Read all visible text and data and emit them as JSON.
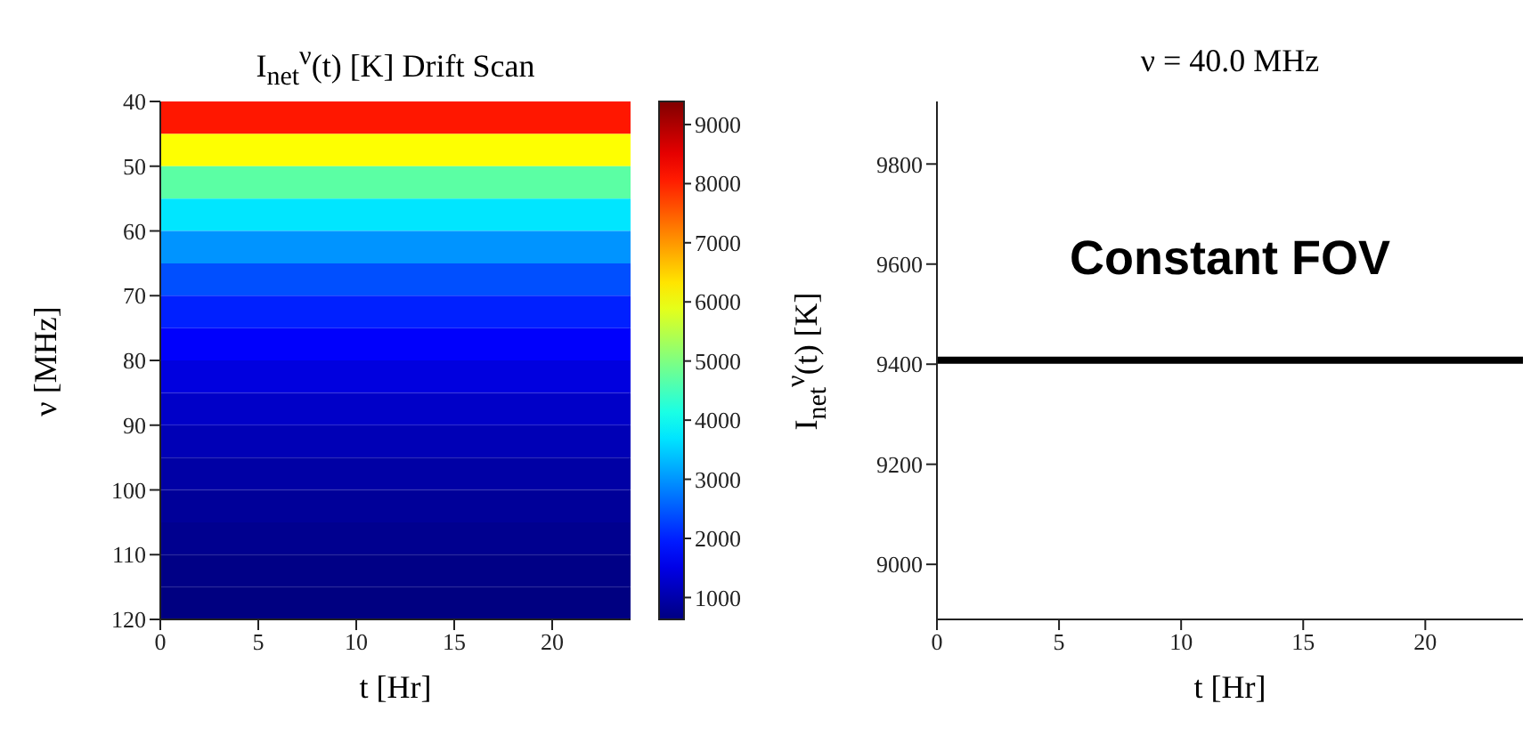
{
  "chart_data": [
    {
      "type": "heatmap",
      "title": "I$_{net}$$^{ν}$(t) [K] Drift Scan",
      "xlabel": "t [Hr]",
      "ylabel": "ν [MHz]",
      "xlim": [
        0,
        24
      ],
      "xticks": [
        0,
        5,
        10,
        15,
        20
      ],
      "ylim": [
        120,
        40
      ],
      "yticks": [
        40,
        50,
        60,
        70,
        80,
        90,
        100,
        110,
        120
      ],
      "clim": [
        630,
        9390
      ],
      "cticks": [
        1000,
        2000,
        3000,
        4000,
        5000,
        6000,
        7000,
        8000,
        9000
      ],
      "cells": [
        [
          8100
        ],
        [
          6100
        ],
        [
          4700
        ],
        [
          3700
        ],
        [
          3000
        ],
        [
          2400
        ],
        [
          2000
        ],
        [
          1700
        ],
        [
          1450
        ],
        [
          1250
        ],
        [
          1100
        ],
        [
          950
        ],
        [
          850
        ],
        [
          760
        ],
        [
          690
        ],
        [
          640
        ]
      ]
    },
    {
      "type": "line",
      "title": "ν = 40.0 MHz",
      "xlabel": "t [Hr]",
      "ylabel": "I$_{net}$$^{ν}$(t) [K]",
      "x": [
        0,
        24
      ],
      "xlim": [
        0,
        24
      ],
      "xticks": [
        0,
        5,
        10,
        15,
        20
      ],
      "ylim": [
        8890,
        9925
      ],
      "yticks": [
        9000,
        9200,
        9400,
        9600,
        9800
      ],
      "grid": false,
      "marker": "none",
      "line_style": "solid",
      "series": [
        {
          "color": "#000000",
          "values": [
            9408,
            9408
          ]
        }
      ],
      "annotations": [
        "Constant FOV"
      ]
    }
  ]
}
